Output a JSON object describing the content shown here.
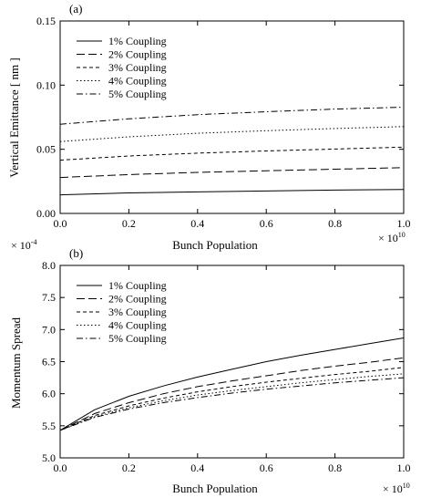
{
  "chart_data": [
    {
      "type": "line",
      "panel_label": "(a)",
      "xlabel": "Bunch Population",
      "ylabel": "Vertical Emittance [ nm ]",
      "x_multiplier": {
        "base": "× 10",
        "exp": "10"
      },
      "xlim": [
        0,
        1.0
      ],
      "ylim": [
        0,
        0.15
      ],
      "x_ticks": [
        "0.0",
        "0.2",
        "0.4",
        "0.6",
        "0.8",
        "1.0"
      ],
      "x_tick_values": [
        0,
        0.2,
        0.4,
        0.6,
        0.8,
        1.0
      ],
      "y_ticks": [
        "0.00",
        "0.05",
        "0.10",
        "0.15"
      ],
      "y_tick_values": [
        0,
        0.05,
        0.1,
        0.15
      ],
      "legend_position": "top-left",
      "x": [
        0,
        0.2,
        0.4,
        0.6,
        0.8,
        1.0
      ],
      "series": [
        {
          "name": "1% Coupling",
          "values": [
            0.0145,
            0.016,
            0.0168,
            0.0175,
            0.0182,
            0.0187
          ],
          "dash": "solid"
        },
        {
          "name": "2% Coupling",
          "values": [
            0.028,
            0.0303,
            0.032,
            0.0333,
            0.0345,
            0.0357
          ],
          "dash": "long"
        },
        {
          "name": "3% Coupling",
          "values": [
            0.0415,
            0.0448,
            0.047,
            0.0487,
            0.0502,
            0.0517
          ],
          "dash": "short"
        },
        {
          "name": "4% Coupling",
          "values": [
            0.056,
            0.0597,
            0.0625,
            0.0645,
            0.0662,
            0.0677
          ],
          "dash": "dot"
        },
        {
          "name": "5% Coupling",
          "values": [
            0.0695,
            0.0737,
            0.077,
            0.0793,
            0.0813,
            0.0828
          ],
          "dash": "dashdot"
        }
      ]
    },
    {
      "type": "line",
      "panel_label": "(b)",
      "xlabel": "Bunch Population",
      "ylabel": "Momentum Spread",
      "x_multiplier": {
        "base": "× 10",
        "exp": "10"
      },
      "y_multiplier": {
        "base": "× 10",
        "exp": "-4"
      },
      "xlim": [
        0,
        1.0
      ],
      "ylim": [
        5.0,
        8.0
      ],
      "x_ticks": [
        "0.0",
        "0.2",
        "0.4",
        "0.6",
        "0.8",
        "1.0"
      ],
      "x_tick_values": [
        0,
        0.2,
        0.4,
        0.6,
        0.8,
        1.0
      ],
      "y_ticks": [
        "5.0",
        "5.5",
        "6.0",
        "6.5",
        "7.0",
        "7.5",
        "8.0"
      ],
      "y_tick_values": [
        5.0,
        5.5,
        6.0,
        6.5,
        7.0,
        7.5,
        8.0
      ],
      "legend_position": "top-left",
      "x": [
        0,
        0.1,
        0.2,
        0.3,
        0.4,
        0.5,
        0.6,
        0.7,
        0.8,
        0.9,
        1.0
      ],
      "series": [
        {
          "name": "1% Coupling",
          "values": [
            5.43,
            5.75,
            5.96,
            6.12,
            6.26,
            6.38,
            6.5,
            6.6,
            6.69,
            6.78,
            6.87
          ],
          "dash": "solid"
        },
        {
          "name": "2% Coupling",
          "values": [
            5.43,
            5.69,
            5.86,
            6.0,
            6.11,
            6.2,
            6.28,
            6.36,
            6.43,
            6.49,
            6.56
          ],
          "dash": "long"
        },
        {
          "name": "3% Coupling",
          "values": [
            5.43,
            5.66,
            5.81,
            5.93,
            6.03,
            6.11,
            6.18,
            6.24,
            6.3,
            6.35,
            6.41
          ],
          "dash": "short"
        },
        {
          "name": "4% Coupling",
          "values": [
            5.43,
            5.64,
            5.78,
            5.89,
            5.98,
            6.05,
            6.11,
            6.17,
            6.22,
            6.27,
            6.31
          ],
          "dash": "dot"
        },
        {
          "name": "5% Coupling",
          "values": [
            5.43,
            5.63,
            5.76,
            5.86,
            5.94,
            6.01,
            6.07,
            6.12,
            6.17,
            6.21,
            6.25
          ],
          "dash": "dashdot"
        }
      ]
    }
  ]
}
